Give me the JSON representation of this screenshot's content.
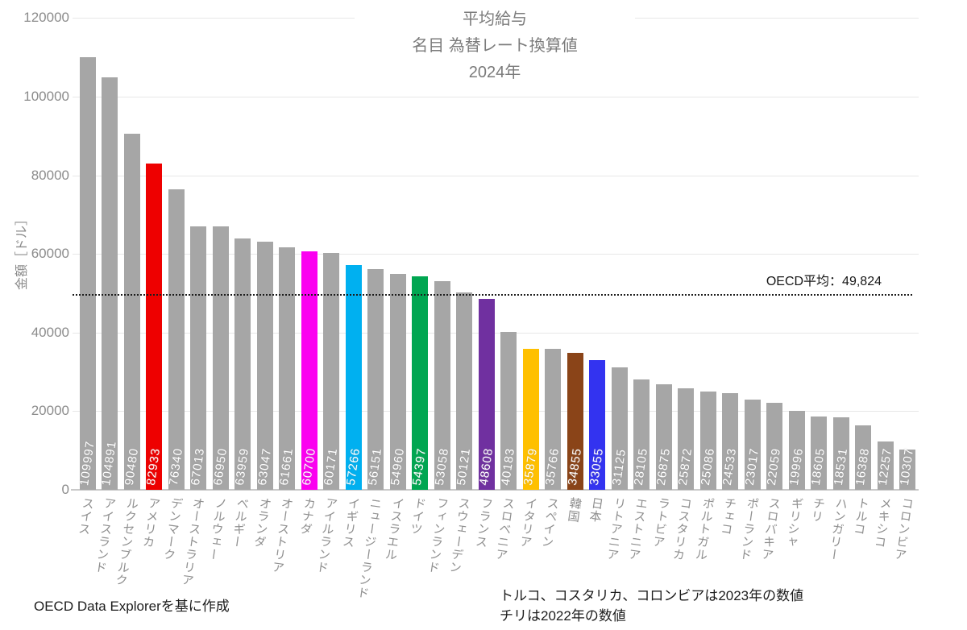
{
  "chart_data": {
    "type": "bar",
    "title_lines": [
      "平均給与",
      "名目 為替レート換算値",
      "2024年"
    ],
    "ylabel": "金額［ドル］",
    "ylim": [
      0,
      120000
    ],
    "yticks": [
      0,
      20000,
      40000,
      60000,
      80000,
      100000,
      120000
    ],
    "grid": "horizontal",
    "legend_position": "none",
    "default_bar_color": "#a6a6a6",
    "average_line": {
      "value": 49824,
      "label": "OECD平均：49,824",
      "style": "dotted",
      "color": "#1c1c1c"
    },
    "highlight_colors": {
      "アメリカ": "#ee0000",
      "カナダ": "#fb00f0",
      "イギリス": "#00b0f0",
      "ドイツ": "#00a651",
      "フランス": "#7030a0",
      "イタリア": "#ffc000",
      "韓国": "#8a4418",
      "日本": "#3333f0"
    },
    "bars": [
      {
        "country": "スイス",
        "value": 109997
      },
      {
        "country": "アイスランド",
        "value": 104891
      },
      {
        "country": "ルクセンブルク",
        "value": 90480
      },
      {
        "country": "アメリカ",
        "value": 82933,
        "color": "#ee0000"
      },
      {
        "country": "デンマーク",
        "value": 76340
      },
      {
        "country": "オーストラリア",
        "value": 67013
      },
      {
        "country": "ノルウェー",
        "value": 66950
      },
      {
        "country": "ベルギー",
        "value": 63959
      },
      {
        "country": "オランダ",
        "value": 63047
      },
      {
        "country": "オーストリア",
        "value": 61661
      },
      {
        "country": "カナダ",
        "value": 60700,
        "color": "#fb00f0"
      },
      {
        "country": "アイルランド",
        "value": 60171
      },
      {
        "country": "イギリス",
        "value": 57266,
        "color": "#00b0f0"
      },
      {
        "country": "ニュージーランド",
        "value": 56151
      },
      {
        "country": "イスラエル",
        "value": 54960
      },
      {
        "country": "ドイツ",
        "value": 54397,
        "color": "#00a651"
      },
      {
        "country": "フィンランド",
        "value": 53058
      },
      {
        "country": "スウェーデン",
        "value": 50121
      },
      {
        "country": "フランス",
        "value": 48608,
        "color": "#7030a0"
      },
      {
        "country": "スロベニア",
        "value": 40183
      },
      {
        "country": "イタリア",
        "value": 35879,
        "color": "#ffc000"
      },
      {
        "country": "スペイン",
        "value": 35766
      },
      {
        "country": "韓国",
        "value": 34855,
        "color": "#8a4418"
      },
      {
        "country": "日本",
        "value": 33055,
        "color": "#3333f0"
      },
      {
        "country": "リトアニア",
        "value": 31125
      },
      {
        "country": "エストニア",
        "value": 28105
      },
      {
        "country": "ラトビア",
        "value": 26875
      },
      {
        "country": "コスタリカ",
        "value": 25872
      },
      {
        "country": "ポルトガル",
        "value": 25086
      },
      {
        "country": "チェコ",
        "value": 24533
      },
      {
        "country": "ポーランド",
        "value": 23017
      },
      {
        "country": "スロバキア",
        "value": 22059
      },
      {
        "country": "ギリシャ",
        "value": 19996
      },
      {
        "country": "チリ",
        "value": 18605
      },
      {
        "country": "ハンガリー",
        "value": 18531
      },
      {
        "country": "トルコ",
        "value": 16388
      },
      {
        "country": "メキシコ",
        "value": 12257
      },
      {
        "country": "コロンビア",
        "value": 10307
      }
    ]
  },
  "footnotes": {
    "source": "OECD Data Explorerを基に作成",
    "note1": "トルコ、コスタリカ、コロンビアは2023年の数値",
    "note2": "チリは2022年の数値"
  }
}
